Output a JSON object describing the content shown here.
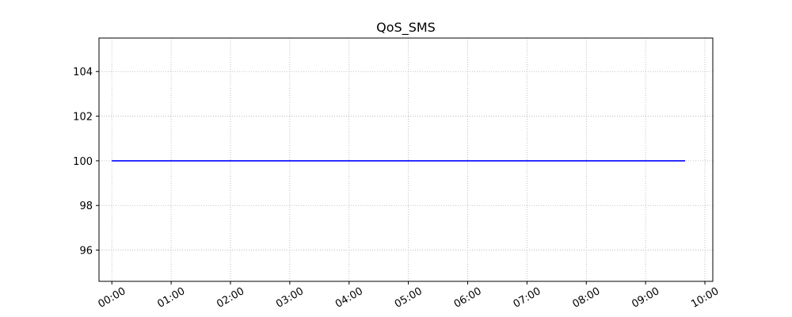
{
  "chart_data": {
    "type": "line",
    "title": "QoS_SMS",
    "xlabel": "",
    "ylabel": "",
    "x": [
      "00:00",
      "09:40"
    ],
    "series": [
      {
        "values": [
          100,
          100
        ],
        "color": "#0000ff"
      }
    ],
    "xlim": [
      "-00:13",
      "10:08"
    ],
    "ylim": [
      94.6,
      105.5
    ],
    "x_ticks": [
      "00:00",
      "01:00",
      "02:00",
      "03:00",
      "04:00",
      "05:00",
      "06:00",
      "07:00",
      "08:00",
      "09:00",
      "10:00"
    ],
    "y_ticks": [
      96,
      98,
      100,
      102,
      104
    ],
    "grid": true
  }
}
